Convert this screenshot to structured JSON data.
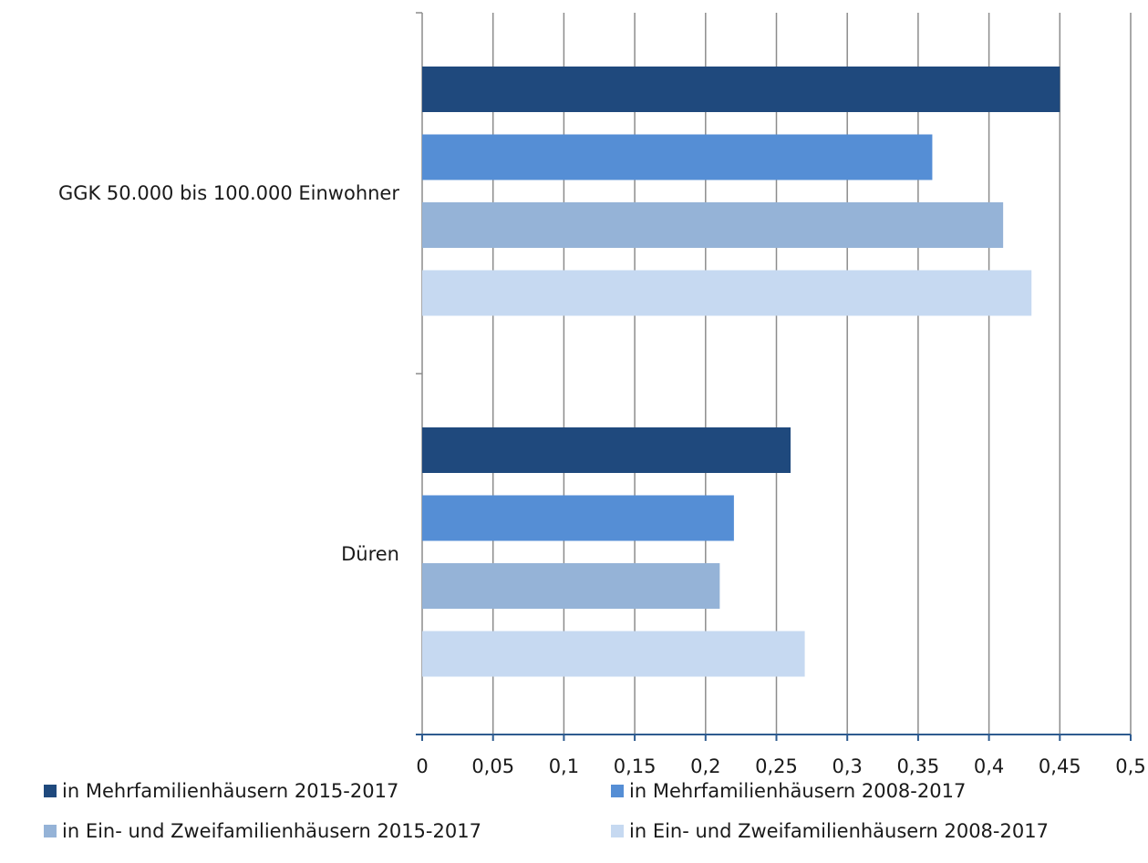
{
  "chart_data": {
    "type": "bar",
    "orientation": "horizontal",
    "categories": [
      "GGK 50.000 bis 100.000 Einwohner",
      "Düren"
    ],
    "series": [
      {
        "name": "in Mehrfamilienhäusern 2015-2017",
        "color": "#1f497d",
        "values": [
          0.45,
          0.26
        ]
      },
      {
        "name": "in Mehrfamilienhäusern 2008-2017",
        "color": "#558ed5",
        "values": [
          0.36,
          0.22
        ]
      },
      {
        "name": "in Ein- und Zweifamilienhäusern 2015-2017",
        "color": "#95b3d7",
        "values": [
          0.41,
          0.21
        ]
      },
      {
        "name": "in Ein- und Zweifamilienhäusern 2008-2017",
        "color": "#c6d9f1",
        "values": [
          0.43,
          0.27
        ]
      }
    ],
    "xlim": [
      0,
      0.5
    ],
    "xticks": [
      "0",
      "0,05",
      "0,1",
      "0,15",
      "0,2",
      "0,25",
      "0,3",
      "0,35",
      "0,4",
      "0,45",
      "0,5"
    ],
    "grid": true,
    "legend_position": "bottom",
    "axis_color": "#2e5b8f",
    "grid_color": "#8c8c8c"
  }
}
